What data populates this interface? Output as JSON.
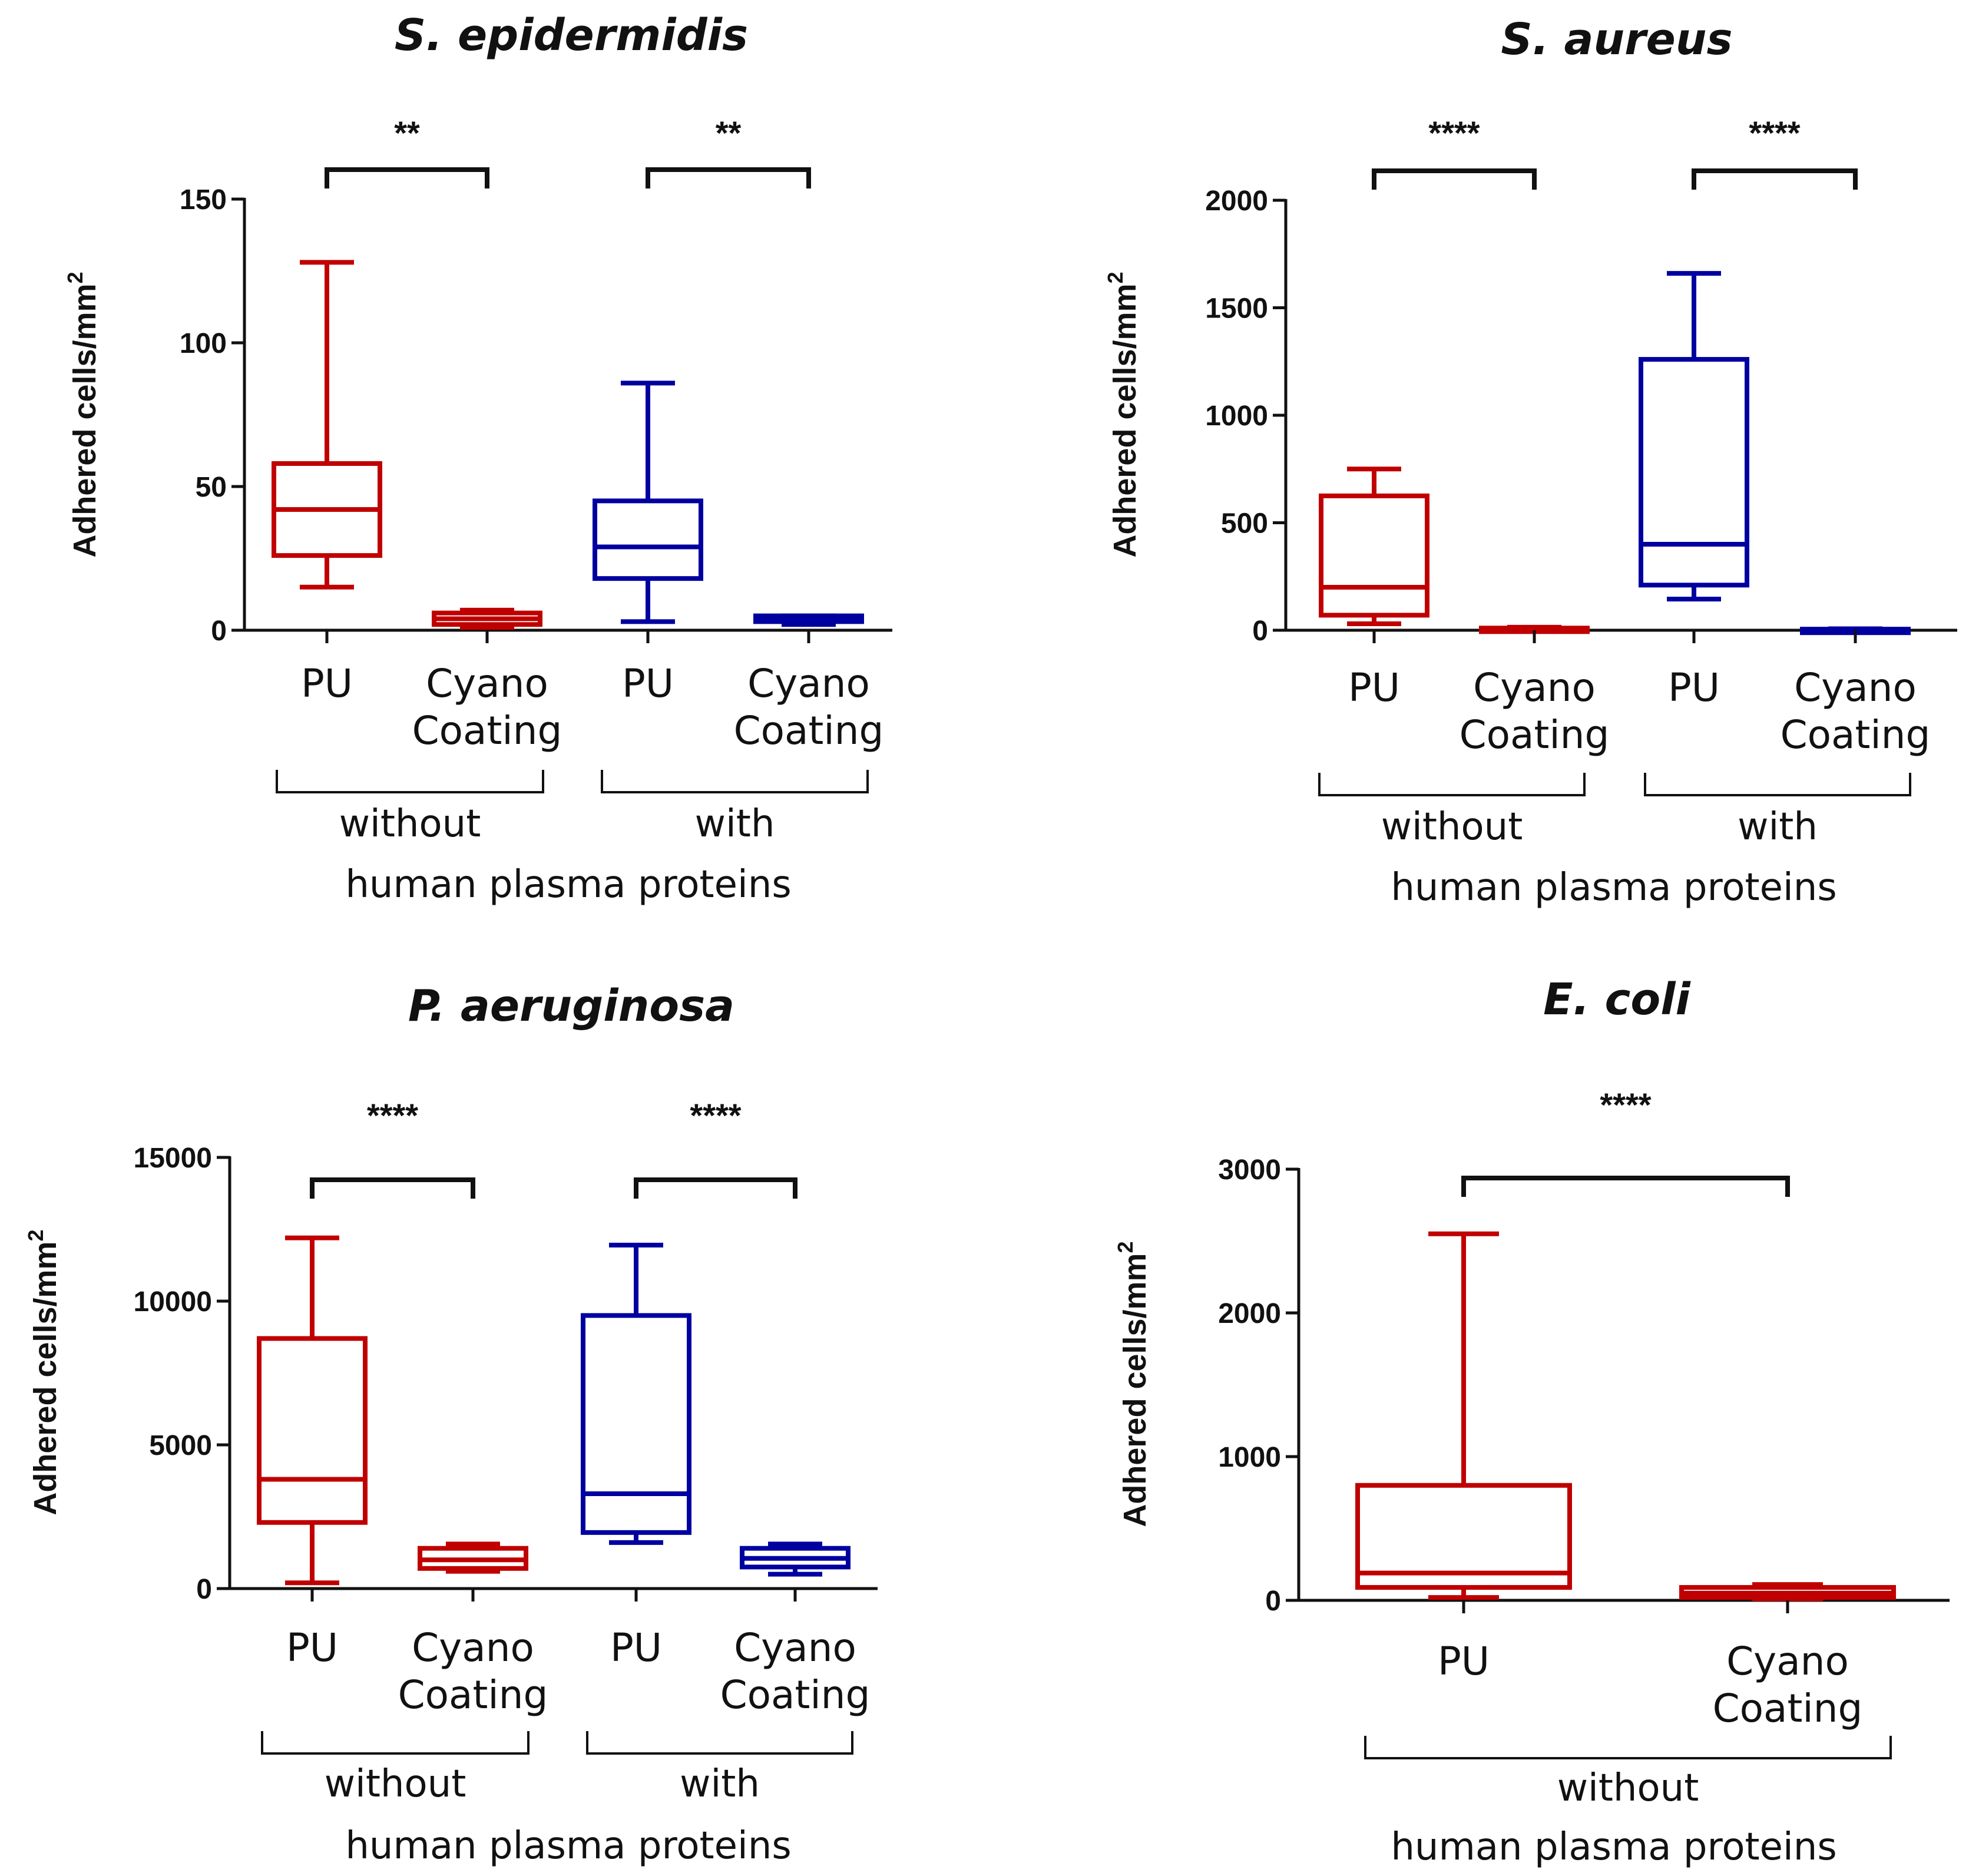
{
  "colors": {
    "without": "#c00000",
    "with": "#0000a0",
    "axis": "#111111"
  },
  "chart_data": [
    {
      "type": "box",
      "title": "S. epidermidis",
      "ylabel": "Adhered cells/mm",
      "ylabel_sup": "2",
      "xlabel": "human plasma proteins",
      "ylim": [
        0,
        150
      ],
      "yticks": [
        "0",
        "50",
        "100",
        "150"
      ],
      "groups": [
        "without",
        "with"
      ],
      "categories": [
        "PU",
        "Cyano|Coating",
        "PU",
        "Cyano|Coating"
      ],
      "boxes": [
        {
          "group": "without",
          "min": 15,
          "q1": 26,
          "median": 42,
          "q3": 58,
          "max": 128
        },
        {
          "group": "without",
          "min": 1,
          "q1": 2,
          "median": 4,
          "q3": 6,
          "max": 7
        },
        {
          "group": "with",
          "min": 3,
          "q1": 18,
          "median": 29,
          "q3": 45,
          "max": 86
        },
        {
          "group": "with",
          "min": 2,
          "q1": 3,
          "median": 4,
          "q3": 5,
          "max": 5
        }
      ],
      "significance": [
        {
          "pair": [
            0,
            1
          ],
          "label": "**"
        },
        {
          "pair": [
            2,
            3
          ],
          "label": "**"
        }
      ]
    },
    {
      "type": "box",
      "title": "S. aureus",
      "ylabel": "Adhered cells/mm",
      "ylabel_sup": "2",
      "xlabel": "human plasma proteins",
      "ylim": [
        0,
        2000
      ],
      "yticks": [
        "0",
        "500",
        "1000",
        "1500",
        "2000"
      ],
      "groups": [
        "without",
        "with"
      ],
      "categories": [
        "PU",
        "Cyano|Coating",
        "PU",
        "Cyano|Coating"
      ],
      "boxes": [
        {
          "group": "without",
          "min": 30,
          "q1": 70,
          "median": 200,
          "q3": 625,
          "max": 750
        },
        {
          "group": "without",
          "min": 2,
          "q1": 4,
          "median": 6,
          "q3": 10,
          "max": 14
        },
        {
          "group": "with",
          "min": 145,
          "q1": 210,
          "median": 400,
          "q3": 1260,
          "max": 1660
        },
        {
          "group": "with",
          "min": 1,
          "q1": 2,
          "median": 3,
          "q3": 5,
          "max": 7
        }
      ],
      "significance": [
        {
          "pair": [
            0,
            1
          ],
          "label": "****"
        },
        {
          "pair": [
            2,
            3
          ],
          "label": "****"
        }
      ]
    },
    {
      "type": "box",
      "title": "P. aeruginosa",
      "ylabel": "Adhered cells/mm",
      "ylabel_sup": "2",
      "xlabel": "human plasma proteins",
      "ylim": [
        0,
        15000
      ],
      "yticks": [
        "0",
        "5000",
        "10000",
        "15000"
      ],
      "groups": [
        "without",
        "with"
      ],
      "categories": [
        "PU",
        "Cyano|Coating",
        "PU",
        "Cyano|Coating"
      ],
      "boxes": [
        {
          "group": "without",
          "min": 200,
          "q1": 2300,
          "median": 3800,
          "q3": 8700,
          "max": 12200
        },
        {
          "group": "without",
          "min": 600,
          "q1": 700,
          "median": 1000,
          "q3": 1400,
          "max": 1550
        },
        {
          "group": "with",
          "min": 1600,
          "q1": 1950,
          "median": 3300,
          "q3": 9500,
          "max": 11950
        },
        {
          "group": "with",
          "min": 500,
          "q1": 750,
          "median": 1050,
          "q3": 1400,
          "max": 1550
        }
      ],
      "significance": [
        {
          "pair": [
            0,
            1
          ],
          "label": "****"
        },
        {
          "pair": [
            2,
            3
          ],
          "label": "****"
        }
      ]
    },
    {
      "type": "box",
      "title": "E. coli",
      "ylabel": "Adhered cells/mm",
      "ylabel_sup": "2",
      "xlabel": "human plasma proteins",
      "ylim": [
        0,
        3000
      ],
      "yticks": [
        "0",
        "1000",
        "2000",
        "3000"
      ],
      "groups": [
        "without"
      ],
      "categories": [
        "PU",
        "Cyano|Coating"
      ],
      "boxes": [
        {
          "group": "without",
          "min": 20,
          "q1": 90,
          "median": 190,
          "q3": 800,
          "max": 2550
        },
        {
          "group": "without",
          "min": 10,
          "q1": 20,
          "median": 50,
          "q3": 90,
          "max": 110
        }
      ],
      "significance": [
        {
          "pair": [
            0,
            1
          ],
          "label": "****"
        }
      ]
    }
  ]
}
